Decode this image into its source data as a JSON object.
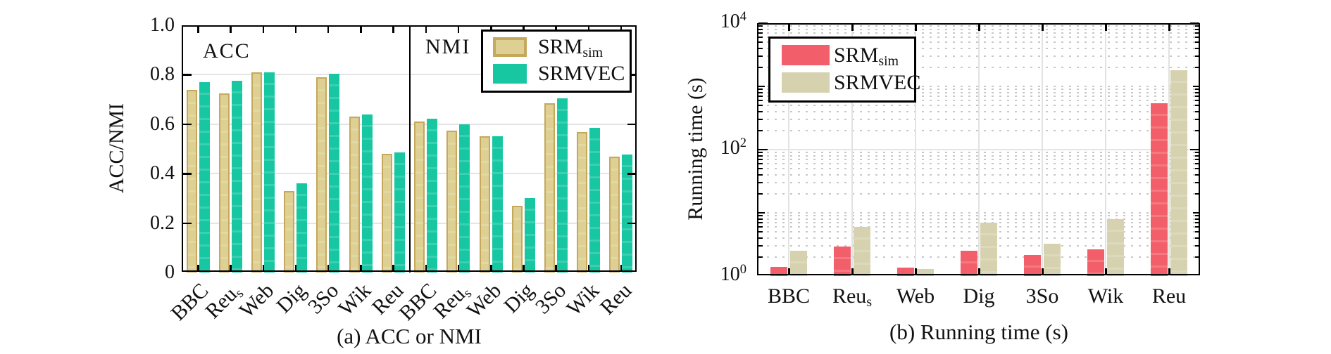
{
  "chart_data": [
    {
      "type": "bar",
      "title": "(a) ACC or NMI",
      "ylabel": "ACC/NMI",
      "ylim": [
        0,
        1.0
      ],
      "ytick_values": [
        0,
        0.2,
        0.4,
        0.6,
        0.8,
        1.0
      ],
      "ytick_labels": [
        "0",
        "0.2",
        "0.4",
        "0.6",
        "0.8",
        "1.0"
      ],
      "grid": "horizontal major gridlines, light gray",
      "legend_position": "top-right",
      "group_labels": [
        "ACC",
        "NMI"
      ],
      "categories": [
        "BBC",
        "Reu_s",
        "Web",
        "Dig",
        "3So",
        "Wik",
        "Reu",
        "BBC",
        "Reu_s",
        "Web",
        "Dig",
        "3So",
        "Wik",
        "Reu"
      ],
      "series": [
        {
          "name": "SRM_sim",
          "color": "#ddd092",
          "edge_color": "#c6a85c",
          "values": [
            0.74,
            0.725,
            0.81,
            0.33,
            0.79,
            0.63,
            0.48,
            0.61,
            0.575,
            0.55,
            0.27,
            0.685,
            0.567,
            0.47
          ]
        },
        {
          "name": "SRMVEC",
          "color": "#16c7a2",
          "edge_color": "",
          "values": [
            0.77,
            0.775,
            0.81,
            0.36,
            0.805,
            0.64,
            0.487,
            0.623,
            0.6,
            0.55,
            0.3,
            0.705,
            0.585,
            0.477
          ]
        }
      ]
    },
    {
      "type": "bar",
      "title": "(b) Running time (s)",
      "ylabel": "Running time (s)",
      "yscale": "log",
      "ylim": [
        1,
        10000
      ],
      "ytick_values": [
        1,
        100,
        10000
      ],
      "ytick_labels": [
        "10^0",
        "10^2",
        "10^4"
      ],
      "grid": "vertical major light lines, horizontal line at 10^2, dotted log minor gridlines",
      "legend_position": "top-left",
      "categories": [
        "BBC",
        "Reu_s",
        "Web",
        "Dig",
        "3So",
        "Wik",
        "Reu"
      ],
      "series": [
        {
          "name": "SRM_sim",
          "color": "#f25f6a",
          "edge_color": "",
          "values": [
            1.4,
            2.9,
            1.35,
            2.5,
            2.15,
            2.65,
            540
          ]
        },
        {
          "name": "SRMVEC",
          "color": "#d6d2b0",
          "edge_color": "",
          "values": [
            2.5,
            6,
            1.3,
            7,
            3.25,
            8,
            1800
          ]
        }
      ]
    }
  ]
}
